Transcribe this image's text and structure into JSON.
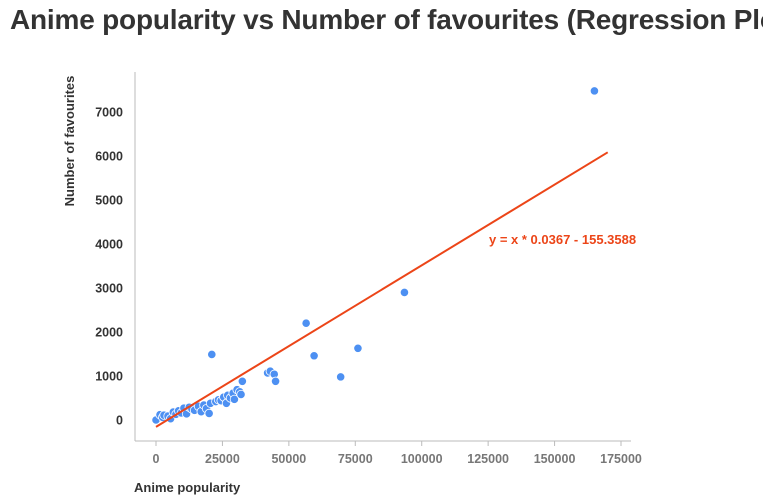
{
  "colors": {
    "title": "#333333",
    "point": "#4d90f2",
    "point_stroke": "#ffffff",
    "regression": "#ec4518",
    "axis": "#bbbbbb",
    "tick_text_x": "#777777",
    "tick_text_y": "#333333"
  },
  "chart_data": {
    "type": "scatter",
    "title": "Anime popularity vs Number of favourites (Regression Plot)",
    "xlabel": "Anime popularity",
    "ylabel": "Number of favourites",
    "xlim": [
      -8000,
      177000
    ],
    "ylim": [
      -500,
      7850
    ],
    "x_ticks": [
      0,
      25000,
      50000,
      75000,
      100000,
      125000,
      150000,
      175000
    ],
    "x_tick_labels": [
      "0",
      "25000",
      "50000",
      "75000",
      "100000",
      "125000",
      "150000",
      "175000"
    ],
    "y_ticks": [
      0,
      1000,
      2000,
      3000,
      4000,
      5000,
      6000,
      7000
    ],
    "y_tick_labels": [
      "0",
      "1000",
      "2000",
      "3000",
      "4000",
      "5000",
      "6000",
      "7000"
    ],
    "grid": false,
    "regression": {
      "slope": 0.0367,
      "intercept": -155.3588,
      "x_range": [
        0,
        170000
      ],
      "equation": "y = x * 0.0367 - 155.3588"
    },
    "series": [
      {
        "points": [
          [
            0,
            0
          ],
          [
            1500,
            120
          ],
          [
            2500,
            60
          ],
          [
            3000,
            110
          ],
          [
            4500,
            90
          ],
          [
            5500,
            30
          ],
          [
            6500,
            180
          ],
          [
            7500,
            130
          ],
          [
            8500,
            210
          ],
          [
            9500,
            160
          ],
          [
            10500,
            270
          ],
          [
            11500,
            140
          ],
          [
            12500,
            290
          ],
          [
            13500,
            250
          ],
          [
            14500,
            220
          ],
          [
            16000,
            310
          ],
          [
            17000,
            190
          ],
          [
            18000,
            340
          ],
          [
            19000,
            260
          ],
          [
            20000,
            150
          ],
          [
            20500,
            380
          ],
          [
            21000,
            1490
          ],
          [
            22500,
            420
          ],
          [
            23500,
            460
          ],
          [
            24500,
            440
          ],
          [
            25500,
            520
          ],
          [
            26500,
            380
          ],
          [
            27000,
            560
          ],
          [
            28000,
            500
          ],
          [
            29000,
            610
          ],
          [
            29500,
            470
          ],
          [
            30500,
            690
          ],
          [
            31500,
            640
          ],
          [
            32000,
            580
          ],
          [
            32500,
            880
          ],
          [
            42000,
            1070
          ],
          [
            43000,
            1110
          ],
          [
            44500,
            1040
          ],
          [
            45000,
            880
          ],
          [
            56500,
            2200
          ],
          [
            59500,
            1460
          ],
          [
            69500,
            980
          ],
          [
            76000,
            1630
          ],
          [
            93500,
            2900
          ],
          [
            165000,
            7480
          ]
        ]
      }
    ]
  }
}
